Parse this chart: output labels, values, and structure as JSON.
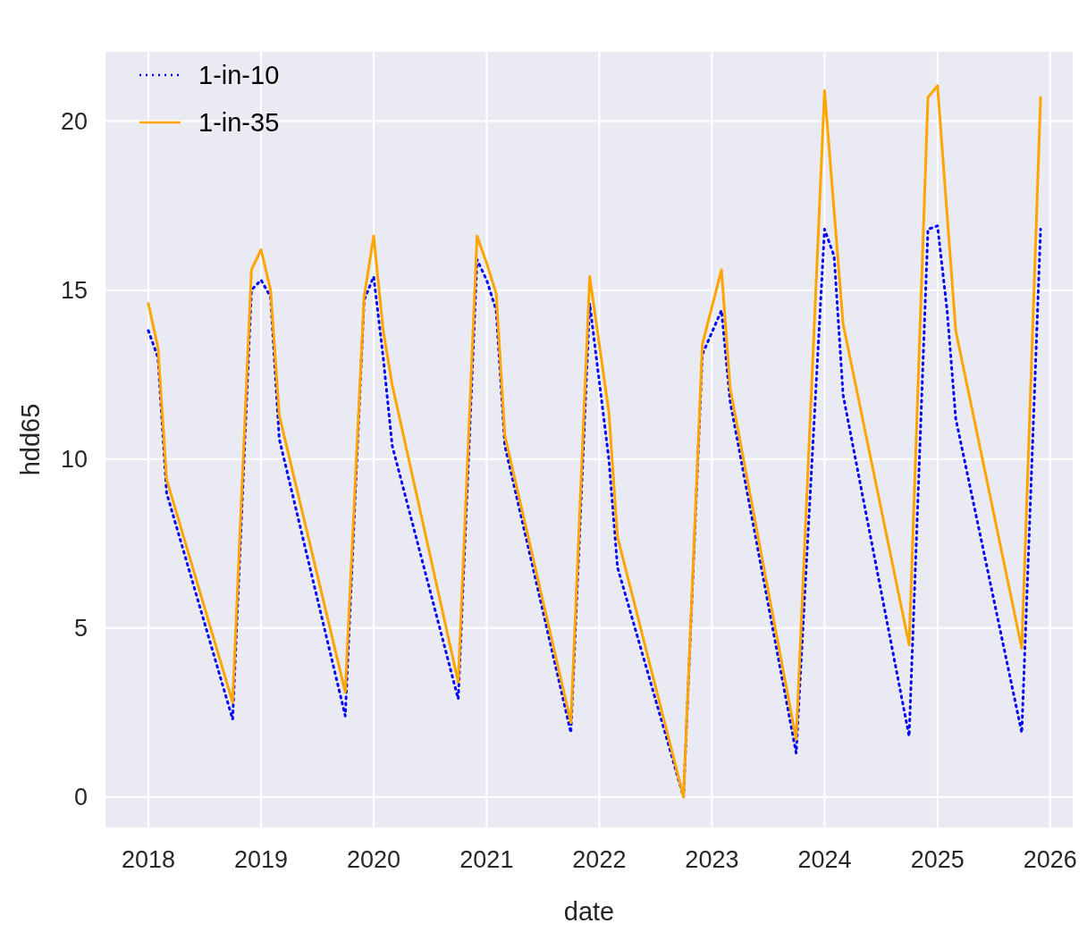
{
  "chart_data": {
    "type": "line",
    "xlabel": "date",
    "ylabel": "hdd65",
    "xlim": [
      "2017-08-15",
      "2026-03-15"
    ],
    "ylim": [
      -0.9,
      22.05
    ],
    "xticks": [
      "2018",
      "2019",
      "2020",
      "2021",
      "2022",
      "2023",
      "2024",
      "2025",
      "2026"
    ],
    "yticks": [
      0,
      5,
      10,
      15,
      20
    ],
    "grid": true,
    "legend": "top left",
    "series": [
      {
        "name": "1-in-10",
        "color": "#0000ff",
        "line_style": "dotted",
        "x": [
          "2018-01",
          "2018-02",
          "2018-03",
          "2018-10",
          "2018-12",
          "2019-01",
          "2019-02",
          "2019-03",
          "2019-10",
          "2019-12",
          "2020-01",
          "2020-02",
          "2020-03",
          "2020-10",
          "2020-12",
          "2021-01",
          "2021-02",
          "2021-03",
          "2021-10",
          "2021-12",
          "2022-02",
          "2022-03",
          "2022-10",
          "2022-12",
          "2023-02",
          "2023-03",
          "2023-10",
          "2024-01",
          "2024-02",
          "2024-03",
          "2024-10",
          "2024-12",
          "2025-01",
          "2025-02",
          "2025-03",
          "2025-10",
          "2025-12"
        ],
        "values": [
          13.8,
          13.0,
          9.0,
          2.3,
          15.0,
          15.3,
          14.8,
          10.6,
          2.4,
          14.7,
          15.4,
          13.0,
          10.4,
          2.9,
          15.9,
          15.3,
          14.4,
          10.4,
          1.9,
          14.6,
          10.0,
          6.8,
          0.0,
          13.1,
          14.4,
          11.7,
          1.3,
          16.8,
          16.0,
          11.9,
          1.8,
          16.8,
          16.9,
          14.4,
          11.2,
          1.9,
          16.8
        ]
      },
      {
        "name": "1-in-35",
        "color": "#ffa500",
        "line_style": "solid",
        "x": [
          "2018-01",
          "2018-02",
          "2018-03",
          "2018-10",
          "2018-12",
          "2019-01",
          "2019-02",
          "2019-03",
          "2019-10",
          "2019-12",
          "2020-01",
          "2020-02",
          "2020-03",
          "2020-10",
          "2020-12",
          "2021-01",
          "2021-02",
          "2021-03",
          "2021-10",
          "2021-12",
          "2022-02",
          "2022-03",
          "2022-10",
          "2022-12",
          "2023-02",
          "2023-03",
          "2023-10",
          "2024-01",
          "2024-03",
          "2024-10",
          "2024-12",
          "2025-01",
          "2025-03",
          "2025-10",
          "2025-12"
        ],
        "values": [
          14.6,
          13.3,
          9.4,
          2.8,
          15.6,
          16.2,
          15.0,
          11.3,
          3.1,
          14.8,
          16.6,
          13.8,
          12.2,
          3.4,
          16.6,
          15.8,
          14.9,
          10.7,
          2.2,
          15.4,
          11.4,
          7.7,
          0.0,
          13.4,
          15.6,
          12.1,
          1.7,
          20.9,
          14.0,
          4.5,
          20.7,
          21.05,
          13.8,
          4.4,
          20.7
        ]
      }
    ]
  }
}
